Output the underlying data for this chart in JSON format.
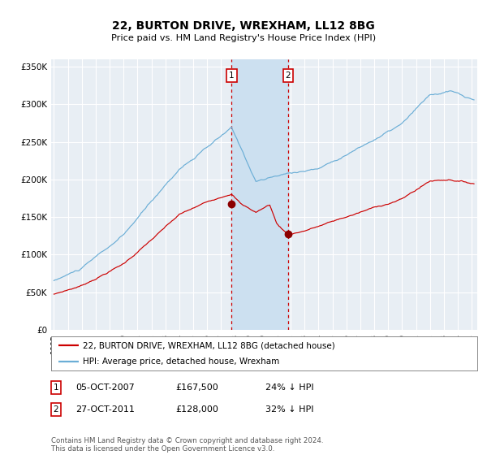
{
  "title": "22, BURTON DRIVE, WREXHAM, LL12 8BG",
  "subtitle": "Price paid vs. HM Land Registry's House Price Index (HPI)",
  "legend_line1": "22, BURTON DRIVE, WREXHAM, LL12 8BG (detached house)",
  "legend_line2": "HPI: Average price, detached house, Wrexham",
  "transaction1_date": "05-OCT-2007",
  "transaction1_price": 167500,
  "transaction1_pct": "24% ↓ HPI",
  "transaction2_date": "27-OCT-2011",
  "transaction2_price": 128000,
  "transaction2_pct": "32% ↓ HPI",
  "footer": "Contains HM Land Registry data © Crown copyright and database right 2024.\nThis data is licensed under the Open Government Licence v3.0.",
  "hpi_color": "#6baed6",
  "price_color": "#cc0000",
  "marker_color": "#8b0000",
  "vline_color": "#cc0000",
  "shade_color": "#cce0f0",
  "background_color": "#e8eef4",
  "grid_color": "#ffffff",
  "ylim": [
    0,
    360000
  ],
  "yticks": [
    0,
    50000,
    100000,
    150000,
    200000,
    250000,
    300000,
    350000
  ],
  "transaction1_year": 2007.76,
  "transaction2_year": 2011.82
}
